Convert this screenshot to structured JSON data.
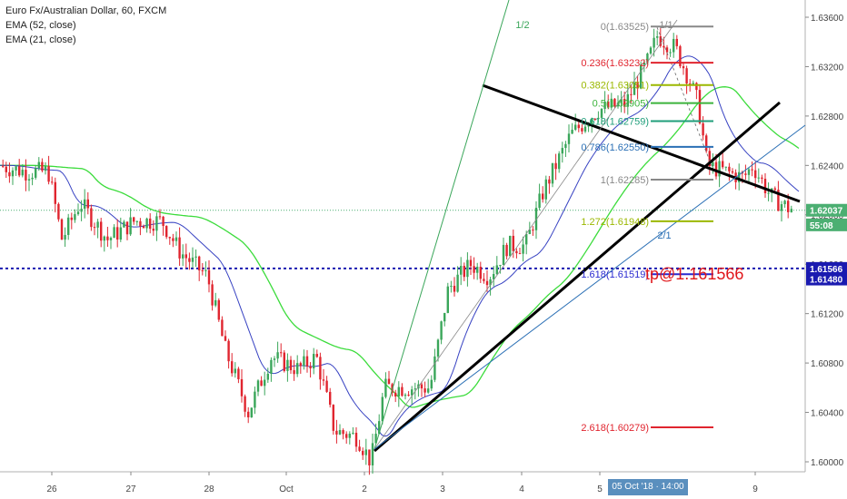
{
  "header": {
    "symbol_line": "Euro Fx/Australian Dollar, 60, FXCM",
    "ema1": "EMA (52, close)",
    "ema2": "EMA (21, close)"
  },
  "annotation": "tp@1.161566",
  "colors": {
    "up": "#3aa65a",
    "down": "#e0252f",
    "ema52": "#3cdc3c",
    "ema21": "#3742c2",
    "price_tag": "#4caf72",
    "dotted_line": "#1a1ab0"
  },
  "chart_data": {
    "type": "candlestick",
    "y_axis_ticks": [
      "1.63600",
      "1.63200",
      "1.62800",
      "1.62400",
      "1.62000",
      "1.61600",
      "1.61200",
      "1.60800",
      "1.60400",
      "1.60000"
    ],
    "y_range": [
      1.5975,
      1.6372
    ],
    "x_axis_ticks": [
      "26",
      "27",
      "28",
      "Oct",
      "2",
      "3",
      "4",
      "5",
      "9"
    ],
    "crosshair_x_label": "05 Oct '18 · 14:00",
    "price_labels": [
      {
        "text": "1.62037",
        "value": 1.62037,
        "color": "#4caf72"
      },
      {
        "text": "55:08",
        "value": 1.61948,
        "color": "#4caf72"
      },
      {
        "text": "1.61566",
        "value": 1.61566,
        "color": "#1a1ab0"
      },
      {
        "text": "1.61480",
        "value": 1.6148,
        "color": "#1a1ab0"
      }
    ],
    "fibonacci_levels": [
      {
        "label": "0(1.63525)",
        "value": 1.63525,
        "color": "#888888"
      },
      {
        "label": "0.236(1.63232)",
        "value": 1.63232,
        "color": "#e0252f"
      },
      {
        "label": "0.382(1.63051)",
        "value": 1.63051,
        "color": "#9bb800"
      },
      {
        "label": "0.5(1.62905)",
        "value": 1.62905,
        "color": "#3cb33c"
      },
      {
        "label": "0.618(1.62759)",
        "value": 1.62759,
        "color": "#1f9e7a"
      },
      {
        "label": "0.786(1.62550)",
        "value": 1.6255,
        "color": "#2a6fb5"
      },
      {
        "label": "1(1.62285)",
        "value": 1.62285,
        "color": "#888888"
      },
      {
        "label": "1.272(1.61948)",
        "value": 1.61948,
        "color": "#9bb800"
      },
      {
        "label": "1.618(1.61519)",
        "value": 1.61519,
        "color": "#2a2ad0"
      },
      {
        "label": "2.618(1.60279)",
        "value": 1.60279,
        "color": "#e0252f"
      }
    ],
    "gann_labels": [
      "1/2",
      "1/1",
      "2/1"
    ],
    "horizontal_lines": [
      {
        "value": 1.61566,
        "style": "dotted",
        "color": "#1a1ab0"
      },
      {
        "value": 1.62037,
        "style": "dotted",
        "color": "#4caf72"
      }
    ]
  }
}
